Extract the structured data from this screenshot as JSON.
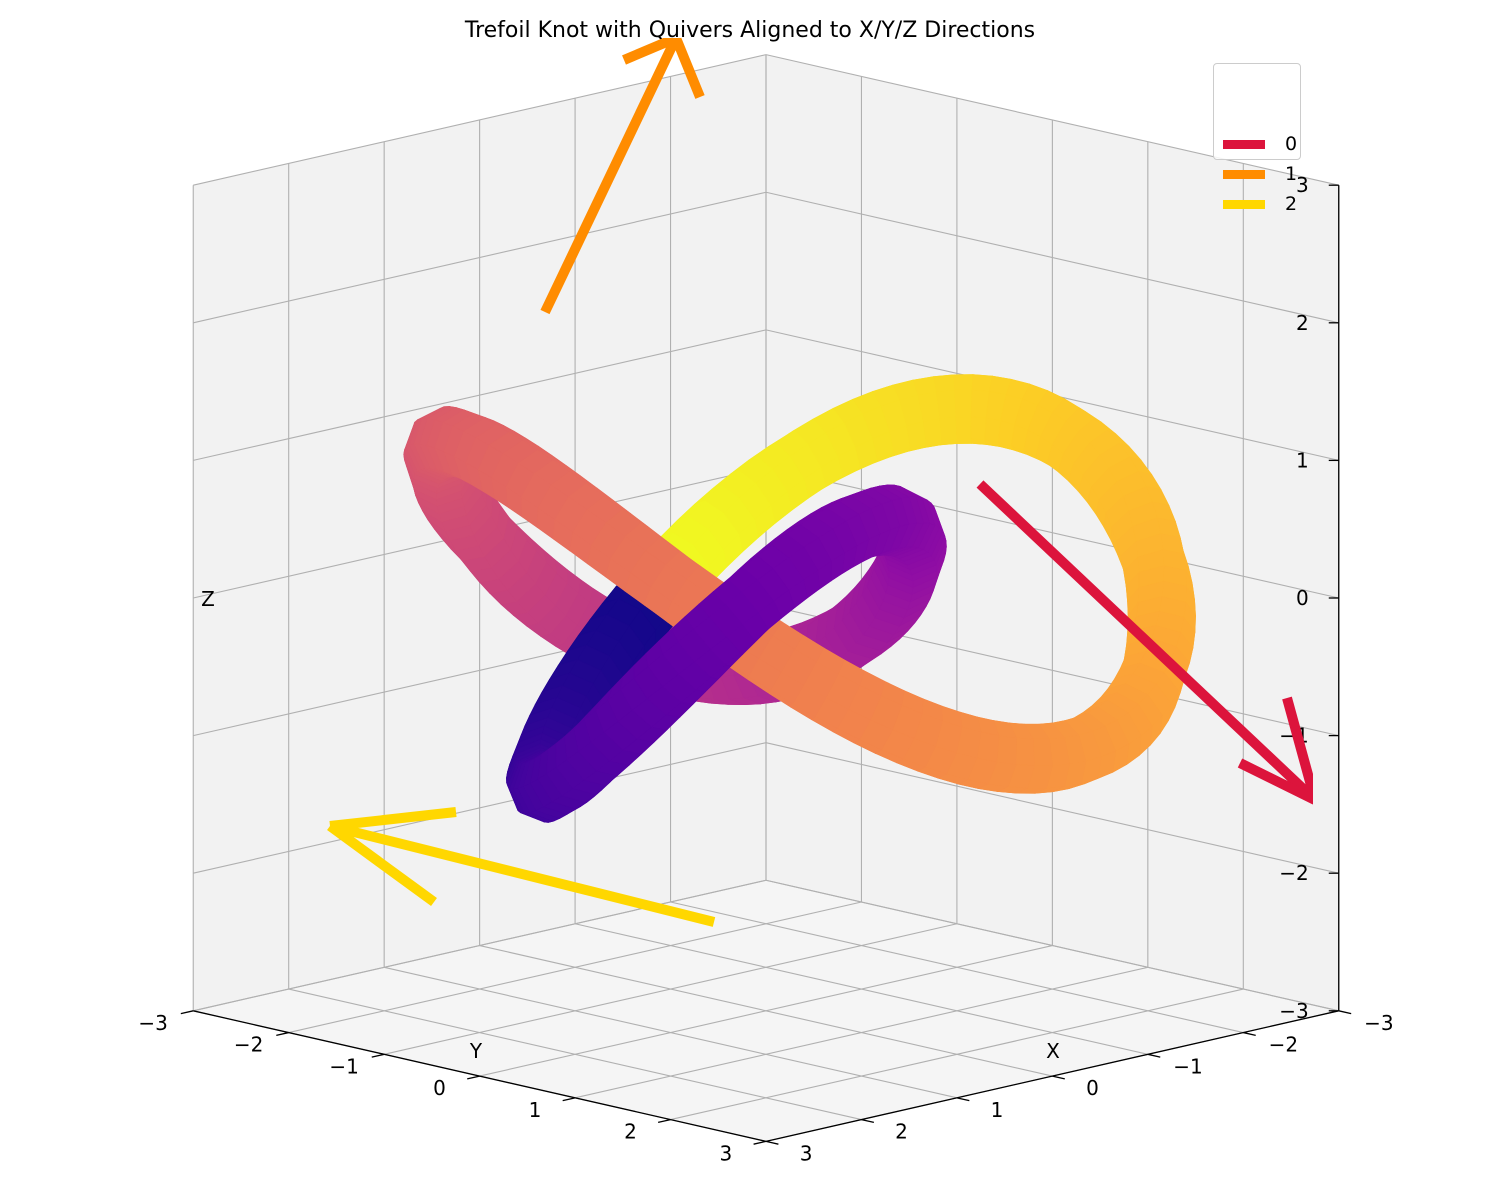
{
  "chart_data": {
    "type": "3d-surface-quiver",
    "title": "Trefoil Knot with Quivers Aligned to X/Y/Z Directions",
    "xlabel": "X",
    "ylabel": "Y",
    "zlabel": "Z",
    "xlim": [
      -3,
      3
    ],
    "ylim": [
      -3,
      3
    ],
    "zlim": [
      -3,
      3
    ],
    "x_ticks": [
      "−3",
      "−2",
      "−1",
      "0",
      "1",
      "2",
      "3"
    ],
    "y_ticks": [
      "−3",
      "−2",
      "−1",
      "0",
      "1",
      "2",
      "3"
    ],
    "z_ticks": [
      "−3",
      "−2",
      "−1",
      "0",
      "1",
      "2",
      "3"
    ],
    "grid": true,
    "colormap": "plasma",
    "surface": {
      "curve": "trefoil knot",
      "x": "sin(t) + 2 sin(2t)",
      "y": "cos(t) - 2 cos(2t)",
      "z": "-sin(3t)",
      "t_range": [
        0,
        6.283
      ],
      "tube_radius": 0.25
    },
    "legend": {
      "position": "upper right",
      "entries": [
        {
          "label": "0",
          "color": "#dc143c"
        },
        {
          "label": "1",
          "color": "#ff8c00"
        },
        {
          "label": "2",
          "color": "#ffd700"
        }
      ]
    },
    "quivers": [
      {
        "label": "0",
        "color": "#dc143c",
        "direction": "X"
      },
      {
        "label": "1",
        "color": "#ff8c00",
        "direction": "Y"
      },
      {
        "label": "2",
        "color": "#ffd700",
        "direction": "Z"
      }
    ]
  }
}
